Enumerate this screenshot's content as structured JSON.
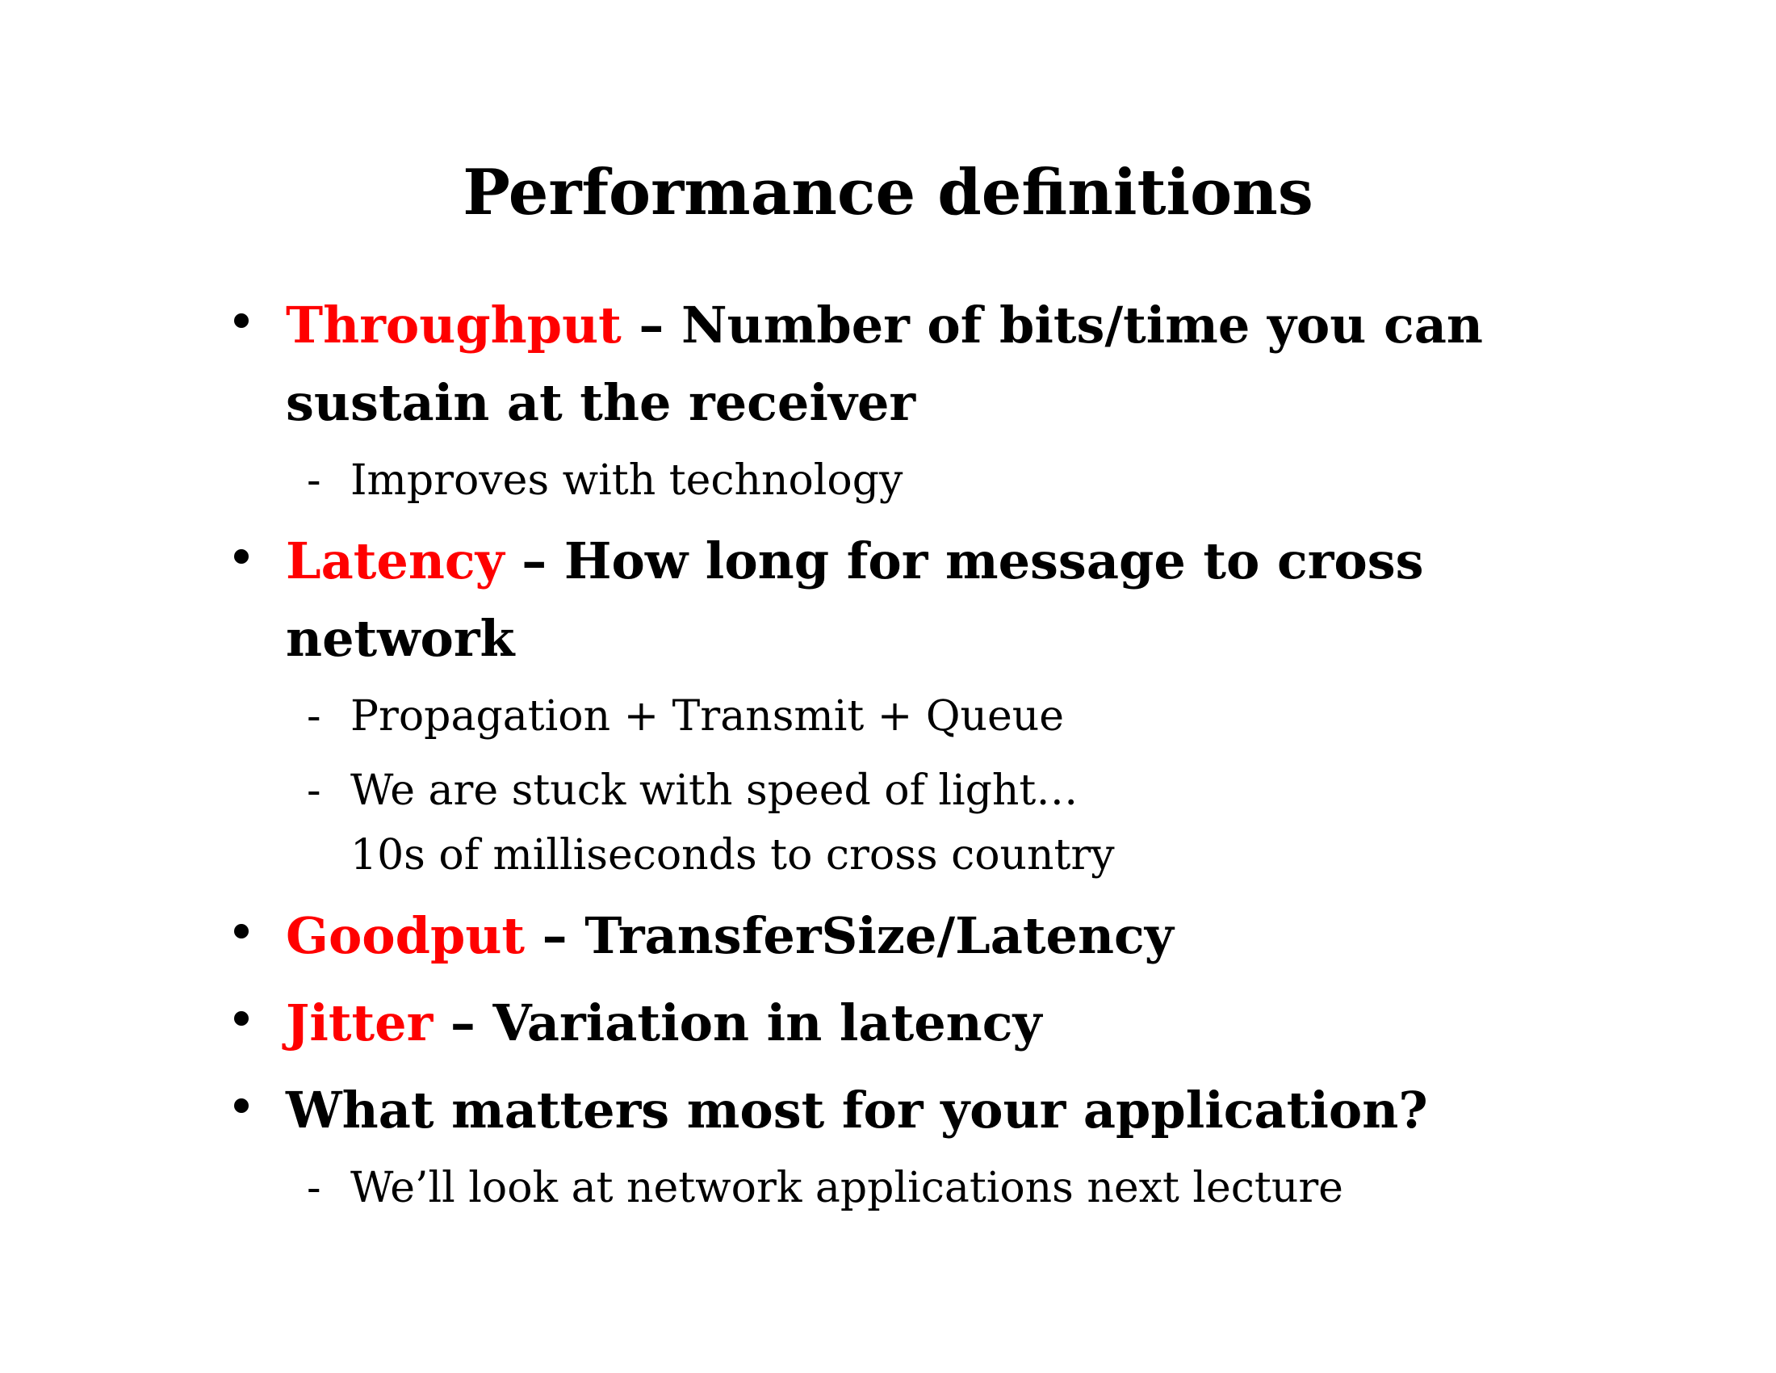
{
  "title": "Performance definitions",
  "bullets": [
    {
      "term": "Throughput",
      "separator": " – ",
      "text": "Number of bits/time you can sustain at the receiver",
      "subs": [
        {
          "lines": [
            "Improves with technology"
          ]
        }
      ]
    },
    {
      "term": "Latency",
      "separator": " – ",
      "text": "How long for message to cross network",
      "subs": [
        {
          "lines": [
            "Propagation + Transmit + Queue"
          ]
        },
        {
          "lines": [
            "We are stuck with speed of light…",
            "10s of milliseconds to cross country"
          ]
        }
      ]
    },
    {
      "term": "Goodput",
      "separator": " – ",
      "text": "TransferSize/Latency",
      "subs": []
    },
    {
      "term": "Jitter",
      "separator": " – ",
      "text": "Variation in latency",
      "subs": []
    },
    {
      "term": "",
      "separator": "",
      "text": "What matters most for your application?",
      "subs": [
        {
          "lines": [
            "We’ll look at network applications next lecture"
          ]
        }
      ]
    }
  ],
  "sub_marker": "-",
  "colors": {
    "term": "#ff0000",
    "text": "#000000",
    "background": "#ffffff"
  }
}
